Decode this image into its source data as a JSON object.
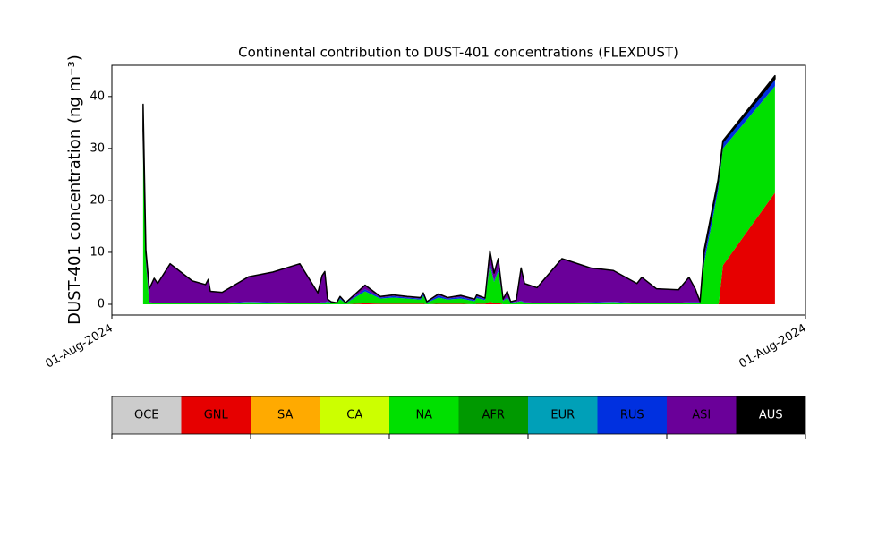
{
  "chart_data": {
    "type": "stacked-area",
    "title": "Continental contribution to DUST-401 concentrations (FLEXDUST)",
    "y_label": "DUST-401 concentration (ng m⁻³)",
    "xlim": [
      0,
      100
    ],
    "xticks": [
      {
        "value": 0,
        "label": "01-Aug-2024"
      },
      {
        "value": 100,
        "label": "01-Aug-2024"
      }
    ],
    "ylim": [
      -2.07,
      46.0
    ],
    "yticks": [
      0,
      10,
      20,
      30,
      40
    ],
    "grid": false,
    "x": [
      4.5,
      4.9,
      5.4,
      6.1,
      6.6,
      8.4,
      11.6,
      13.5,
      13.9,
      14.2,
      15.9,
      19.7,
      23.2,
      27.1,
      29.7,
      30.3,
      30.7,
      31.1,
      31.6,
      32.4,
      32.9,
      33.7,
      36.5,
      38.7,
      40.6,
      42.6,
      44.5,
      44.9,
      45.4,
      47.1,
      48.4,
      50.3,
      52.3,
      52.6,
      53.8,
      54.5,
      55.1,
      55.7,
      56.4,
      57.0,
      57.5,
      58.3,
      59.0,
      59.5,
      61.3,
      64.9,
      69.0,
      72.3,
      75.7,
      76.4,
      78.5,
      81.7,
      83.2,
      84.1,
      84.8,
      85.4,
      87.4,
      87.5,
      88.1,
      95.6
    ],
    "series": [
      {
        "name": "OCE",
        "color": "#cccccc",
        "values": [
          0,
          0,
          0,
          0,
          0,
          0,
          0,
          0,
          0,
          0,
          0,
          0,
          0,
          0,
          0,
          0,
          0,
          0,
          0,
          0,
          0,
          0,
          0,
          0,
          0,
          0,
          0,
          0,
          0,
          0,
          0,
          0,
          0,
          0,
          0,
          0,
          0,
          0,
          0,
          0,
          0,
          0,
          0,
          0,
          0,
          0,
          0,
          0,
          0,
          0,
          0,
          0,
          0,
          0,
          0,
          0,
          0,
          0,
          0,
          0
        ]
      },
      {
        "name": "GNL",
        "color": "#e60000",
        "values": [
          0,
          0,
          0,
          0,
          0,
          0,
          0,
          0,
          0,
          0,
          0,
          0,
          0,
          0,
          0,
          0,
          0,
          0,
          0,
          0,
          0,
          0,
          0.2,
          0.1,
          0.1,
          0.1,
          0.1,
          0.1,
          0,
          0.1,
          0.1,
          0.1,
          0,
          0.1,
          0.1,
          0.5,
          0.3,
          0.3,
          0,
          0,
          0,
          0,
          0,
          0,
          0,
          0,
          0,
          0,
          0,
          0,
          0,
          0,
          0,
          0,
          0,
          0,
          0,
          0.2,
          7.5,
          21.5
        ]
      },
      {
        "name": "SA",
        "color": "#ffaa00",
        "values": [
          0,
          0,
          0,
          0,
          0,
          0,
          0,
          0,
          0,
          0,
          0,
          0,
          0,
          0,
          0,
          0,
          0,
          0,
          0,
          0,
          0,
          0,
          0,
          0,
          0,
          0,
          0,
          0,
          0,
          0,
          0,
          0,
          0,
          0,
          0,
          0,
          0,
          0,
          0,
          0,
          0,
          0,
          0,
          0,
          0,
          0,
          0,
          0,
          0,
          0,
          0,
          0,
          0,
          0,
          0,
          0,
          0,
          0,
          0,
          0
        ]
      },
      {
        "name": "CA",
        "color": "#ccff00",
        "values": [
          0,
          0,
          0,
          0,
          0,
          0,
          0,
          0,
          0,
          0,
          0,
          0,
          0,
          0,
          0,
          0,
          0,
          0,
          0,
          0,
          0,
          0,
          0,
          0,
          0,
          0,
          0,
          0,
          0,
          0,
          0,
          0,
          0,
          0,
          0,
          0,
          0,
          0,
          0,
          0,
          0,
          0,
          0,
          0,
          0,
          0,
          0,
          0,
          0,
          0,
          0,
          0,
          0,
          0,
          0,
          0,
          0,
          0,
          0,
          0
        ]
      },
      {
        "name": "NA",
        "color": "#00e000",
        "values": [
          32,
          8,
          0.3,
          0.2,
          0.2,
          0.2,
          0.2,
          0.2,
          0.2,
          0.2,
          0.2,
          0.4,
          0.3,
          0.2,
          0.2,
          0.3,
          0.3,
          0.5,
          0.3,
          0.2,
          1,
          0.2,
          2.3,
          1,
          1.2,
          1,
          0.8,
          1.5,
          0.3,
          1.2,
          0.8,
          1,
          0.6,
          1.1,
          0.7,
          7,
          4,
          6,
          0.6,
          1.2,
          0.3,
          0.4,
          0.6,
          0.3,
          0.2,
          0.2,
          0.3,
          0.4,
          0.2,
          0.2,
          0.2,
          0.2,
          0.3,
          0.3,
          0.3,
          8,
          22,
          23,
          22.5,
          20.5
        ]
      },
      {
        "name": "AFR",
        "color": "#009900",
        "values": [
          0,
          0,
          0,
          0,
          0,
          0,
          0,
          0,
          0,
          0,
          0,
          0,
          0,
          0,
          0,
          0,
          0,
          0,
          0,
          0,
          0,
          0,
          0,
          0,
          0,
          0,
          0,
          0,
          0,
          0,
          0,
          0,
          0,
          0,
          0,
          0,
          0,
          0,
          0,
          0,
          0,
          0,
          0,
          0,
          0,
          0,
          0,
          0,
          0,
          0,
          0,
          0,
          0,
          0,
          0,
          0,
          0,
          0,
          0,
          0
        ]
      },
      {
        "name": "EUR",
        "color": "#00a0b8",
        "values": [
          0,
          0,
          0,
          0,
          0,
          0,
          0,
          0,
          0,
          0,
          0,
          0,
          0,
          0,
          0,
          0,
          0,
          0,
          0,
          0,
          0,
          0,
          0,
          0,
          0,
          0,
          0,
          0,
          0,
          0,
          0,
          0,
          0,
          0,
          0,
          0,
          0,
          0,
          0,
          0,
          0,
          0,
          0,
          0,
          0,
          0,
          0,
          0,
          0,
          0,
          0,
          0,
          0,
          0,
          0,
          0,
          0,
          0,
          0,
          0
        ]
      },
      {
        "name": "RUS",
        "color": "#0030e0",
        "values": [
          1.5,
          0.5,
          0.1,
          0.1,
          0.1,
          0.1,
          0.1,
          0.1,
          0.1,
          0.1,
          0.1,
          0.1,
          0.1,
          0.1,
          0.1,
          0.1,
          0.1,
          0.1,
          0.1,
          0.05,
          0.2,
          0.05,
          0.4,
          0.2,
          0.3,
          0.2,
          0.2,
          0.3,
          0.1,
          0.4,
          0.2,
          0.3,
          0.2,
          0.3,
          0.2,
          0.5,
          0.3,
          0.4,
          0.1,
          0.2,
          0.1,
          0.1,
          0.1,
          0.1,
          0.1,
          0.1,
          0.1,
          0.1,
          0.1,
          0.1,
          0.1,
          0.1,
          0.1,
          0.1,
          0.1,
          1,
          1.5,
          1.5,
          1.2,
          1.4
        ]
      },
      {
        "name": "ASI",
        "color": "#6a0099",
        "values": [
          0,
          1.5,
          2.6,
          4.7,
          3.7,
          7.5,
          4.2,
          3.5,
          4.5,
          2.2,
          2,
          4.8,
          5.8,
          7.5,
          1.9,
          5.1,
          5.9,
          0.4,
          0.1,
          0.05,
          0.3,
          0.05,
          0.8,
          0.2,
          0.2,
          0.2,
          0.2,
          0.3,
          0.1,
          0.3,
          0.2,
          0.3,
          0.2,
          0.3,
          0.2,
          2.3,
          1.4,
          2.1,
          0.3,
          1.1,
          0.1,
          0.3,
          6.3,
          3.6,
          2.9,
          8.5,
          6.6,
          6,
          3.7,
          4.9,
          2.7,
          2.5,
          4.8,
          2.6,
          0.1,
          1,
          0,
          0,
          0,
          0
        ]
      },
      {
        "name": "AUS",
        "color": "#000000",
        "values": [
          5,
          0.5,
          0,
          0,
          0,
          0,
          0,
          0,
          0,
          0,
          0,
          0,
          0,
          0,
          0,
          0,
          0,
          0,
          0,
          0,
          0,
          0,
          0,
          0,
          0,
          0,
          0,
          0,
          0,
          0,
          0,
          0,
          0,
          0,
          0,
          0,
          0,
          0,
          0,
          0,
          0,
          0,
          0,
          0,
          0,
          0,
          0,
          0,
          0,
          0,
          0,
          0,
          0,
          0,
          0,
          0.5,
          0.5,
          0.5,
          0.3,
          0.6
        ]
      }
    ]
  }
}
